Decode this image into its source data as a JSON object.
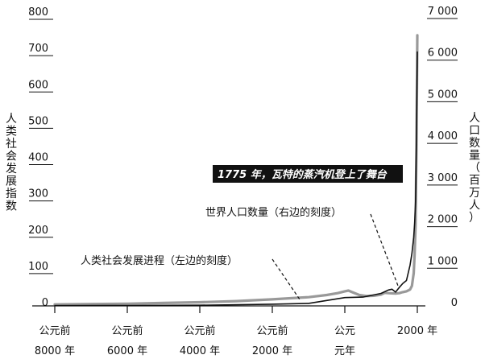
{
  "chart_data": {
    "type": "line",
    "left_axis": {
      "label": "人类社会发展指数",
      "range": [
        0,
        800
      ],
      "ticks": [
        {
          "value": 0,
          "label": "0"
        },
        {
          "value": 100,
          "label": "100"
        },
        {
          "value": 200,
          "label": "200"
        },
        {
          "value": 300,
          "label": "300"
        },
        {
          "value": 400,
          "label": "400"
        },
        {
          "value": 500,
          "label": "500"
        },
        {
          "value": 600,
          "label": "600"
        },
        {
          "value": 700,
          "label": "700"
        },
        {
          "value": 800,
          "label": "800"
        }
      ]
    },
    "right_axis": {
      "label": "人口数量（百万人）",
      "range": [
        0,
        7000
      ],
      "ticks": [
        {
          "value": 0,
          "label": "0"
        },
        {
          "value": 1000,
          "label": "1 000"
        },
        {
          "value": 2000,
          "label": "2 000"
        },
        {
          "value": 3000,
          "label": "3 000"
        },
        {
          "value": 4000,
          "label": "4 000"
        },
        {
          "value": 5000,
          "label": "5 000"
        },
        {
          "value": 6000,
          "label": "6 000"
        },
        {
          "value": 7000,
          "label": "7 000"
        }
      ]
    },
    "x_axis": {
      "range": [
        -8000,
        2000
      ],
      "ticks": [
        {
          "value": -8000,
          "line1": "公元前",
          "line2": "8000 年"
        },
        {
          "value": -6000,
          "line1": "公元前",
          "line2": "6000 年"
        },
        {
          "value": -4000,
          "line1": "公元前",
          "line2": "4000 年"
        },
        {
          "value": -2000,
          "line1": "公元前",
          "line2": "2000 年"
        },
        {
          "value": 0,
          "line1": "公元",
          "line2": "元年"
        },
        {
          "value": 2000,
          "line1": "2000 年",
          "line2": ""
        }
      ]
    },
    "series": [
      {
        "name": "人类社会发展进程（左边的刻度）",
        "axis": "left",
        "color": "#999999",
        "points": [
          [
            -8000,
            4
          ],
          [
            -7000,
            5
          ],
          [
            -6000,
            6
          ],
          [
            -5000,
            8
          ],
          [
            -4000,
            10
          ],
          [
            -3000,
            13
          ],
          [
            -2000,
            18
          ],
          [
            -1500,
            21
          ],
          [
            -1000,
            24
          ],
          [
            -500,
            30
          ],
          [
            -200,
            35
          ],
          [
            0,
            40
          ],
          [
            100,
            42
          ],
          [
            200,
            38
          ],
          [
            400,
            30
          ],
          [
            600,
            27
          ],
          [
            800,
            28
          ],
          [
            1000,
            31
          ],
          [
            1100,
            36
          ],
          [
            1200,
            35
          ],
          [
            1400,
            34
          ],
          [
            1500,
            35
          ],
          [
            1600,
            38
          ],
          [
            1700,
            40
          ],
          [
            1800,
            45
          ],
          [
            1850,
            55
          ],
          [
            1900,
            90
          ],
          [
            1925,
            140
          ],
          [
            1950,
            220
          ],
          [
            1975,
            430
          ],
          [
            2000,
            745
          ]
        ]
      },
      {
        "name": "世界人口数量（右边的刻度）",
        "axis": "right",
        "color": "#111111",
        "points": [
          [
            -8000,
            5
          ],
          [
            -6000,
            10
          ],
          [
            -4000,
            15
          ],
          [
            -2000,
            40
          ],
          [
            -1000,
            60
          ],
          [
            0,
            200
          ],
          [
            500,
            210
          ],
          [
            1000,
            300
          ],
          [
            1200,
            380
          ],
          [
            1300,
            400
          ],
          [
            1400,
            330
          ],
          [
            1500,
            440
          ],
          [
            1600,
            540
          ],
          [
            1700,
            610
          ],
          [
            1800,
            980
          ],
          [
            1850,
            1260
          ],
          [
            1900,
            1650
          ],
          [
            1927,
            2000
          ],
          [
            1950,
            2500
          ],
          [
            1960,
            3000
          ],
          [
            1975,
            4000
          ],
          [
            1987,
            5000
          ],
          [
            2000,
            6100
          ]
        ]
      }
    ],
    "annotations": [
      {
        "text": "1775 年，瓦特的蒸汽机登上了舞台",
        "x": 1775,
        "style": "banner"
      },
      {
        "text": "世界人口数量（右边的刻度）",
        "series": "世界人口数量（右边的刻度）"
      },
      {
        "text": "人类社会发展进程（左边的刻度）",
        "series": "人类社会发展进程（左边的刻度）"
      }
    ],
    "grid": false,
    "legend": "none"
  }
}
